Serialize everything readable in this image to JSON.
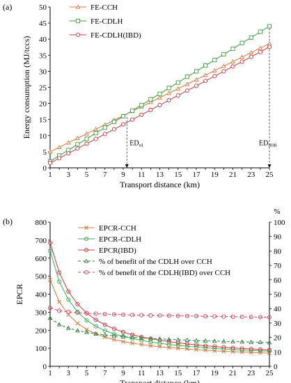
{
  "chart_data": [
    {
      "panel_label": "(a)",
      "type": "line",
      "xlabel": "Transport distance (km)",
      "ylabel": "Energy consumption (MJ/tccs)",
      "xlim": [
        1,
        25
      ],
      "ylim": [
        0,
        50
      ],
      "x_ticks": [
        1,
        3,
        5,
        7,
        9,
        11,
        13,
        15,
        17,
        19,
        21,
        23,
        25
      ],
      "y_ticks": [
        0,
        5,
        10,
        15,
        20,
        25,
        30,
        35,
        40,
        45,
        50
      ],
      "grid": false,
      "legend_position": "top-left",
      "x": [
        1,
        2,
        3,
        4,
        5,
        6,
        7,
        8,
        9,
        10,
        11,
        12,
        13,
        14,
        15,
        16,
        17,
        18,
        19,
        20,
        21,
        22,
        23,
        24,
        25
      ],
      "series": [
        {
          "name": "FE-CCH",
          "marker": "triangle",
          "color": "#d4783a",
          "values": [
            5.0,
            6.4,
            7.8,
            9.2,
            10.6,
            12.0,
            13.4,
            14.8,
            16.2,
            17.6,
            19.0,
            20.4,
            21.8,
            23.2,
            24.6,
            26.0,
            27.4,
            28.8,
            30.2,
            31.6,
            33.0,
            34.4,
            35.8,
            37.2,
            38.6
          ]
        },
        {
          "name": "FE-CDLH",
          "marker": "square",
          "color": "#3f9a3f",
          "values": [
            2.0,
            3.8,
            5.5,
            7.3,
            9.0,
            10.8,
            12.5,
            14.3,
            16.0,
            17.8,
            19.5,
            21.3,
            23.0,
            24.8,
            26.5,
            28.3,
            30.0,
            31.8,
            33.5,
            35.3,
            37.0,
            38.8,
            40.5,
            42.3,
            44.0
          ]
        },
        {
          "name": "FE-CDLH(IBD)",
          "marker": "circle",
          "color": "#c8393e",
          "values": [
            1.5,
            3.0,
            4.5,
            6.0,
            7.5,
            9.0,
            10.5,
            12.0,
            13.5,
            15.0,
            16.5,
            18.0,
            19.5,
            21.0,
            22.5,
            24.0,
            25.5,
            27.0,
            28.5,
            30.0,
            31.5,
            33.0,
            34.5,
            36.0,
            37.6
          ]
        }
      ],
      "annotations": [
        {
          "text": "ED",
          "sub": "eil",
          "x": 9.4
        },
        {
          "text": "ED",
          "sub": "IIDB",
          "x": 25
        }
      ]
    },
    {
      "panel_label": "(b)",
      "type": "line",
      "xlabel": "Transport distance (km)",
      "ylabel": "EPCR",
      "ylabel_right": "%",
      "xlim": [
        1,
        25
      ],
      "ylim": [
        0,
        800
      ],
      "ylim_right": [
        0,
        100
      ],
      "x_ticks": [
        1,
        3,
        5,
        7,
        9,
        11,
        13,
        15,
        17,
        19,
        21,
        23,
        25
      ],
      "y_ticks": [
        0,
        100,
        200,
        300,
        400,
        500,
        600,
        700,
        800
      ],
      "y_ticks_right": [
        0,
        10,
        20,
        30,
        40,
        50,
        60,
        70,
        80,
        90,
        100
      ],
      "grid": false,
      "legend_position": "top-right",
      "x": [
        1,
        2,
        3,
        4,
        5,
        6,
        7,
        8,
        9,
        10,
        11,
        12,
        13,
        14,
        15,
        16,
        17,
        18,
        19,
        20,
        21,
        22,
        23,
        24,
        25
      ],
      "series": [
        {
          "name": "EPCR-CCH",
          "axis": "left",
          "marker": "x",
          "color": "#d4783a",
          "dash": false,
          "values": [
            480,
            357,
            287,
            238,
            204,
            180,
            162,
            148,
            137,
            128,
            121,
            114,
            109,
            104,
            100,
            96,
            92,
            89,
            86,
            83,
            81,
            79,
            77,
            75,
            73
          ]
        },
        {
          "name": "EPCR-CDLH",
          "axis": "left",
          "marker": "circle-open",
          "color": "#3fae57",
          "dash": false,
          "values": [
            640,
            470,
            370,
            302,
            255,
            222,
            198,
            180,
            166,
            154,
            144,
            135,
            128,
            121,
            116,
            111,
            107,
            103,
            99,
            96,
            93,
            90,
            88,
            86,
            84
          ]
        },
        {
          "name": "EPCR(IBD)",
          "axis": "left",
          "marker": "circle-open",
          "color": "#c8393e",
          "dash": false,
          "values": [
            685,
            520,
            415,
            345,
            295,
            258,
            230,
            208,
            190,
            175,
            163,
            153,
            145,
            137,
            130,
            124,
            119,
            114,
            110,
            106,
            102,
            99,
            96,
            93,
            90
          ]
        },
        {
          "name": "% of  benefit of the CDLH over CCH",
          "axis": "right",
          "marker": "triangle-open",
          "color": "#2e7d3a",
          "dash": true,
          "values": [
            33.5,
            29.0,
            26.5,
            24.8,
            23.6,
            22.6,
            21.8,
            21.2,
            20.6,
            20.1,
            19.7,
            19.3,
            19.0,
            18.7,
            18.4,
            18.2,
            17.9,
            17.7,
            17.5,
            17.3,
            17.1,
            17.0,
            16.8,
            16.7,
            16.5
          ]
        },
        {
          "name": "% of  benefit of the CDLH(IBD) over CCH",
          "axis": "right",
          "marker": "circle-open",
          "color": "#d2455a",
          "dash": true,
          "values": [
            40.5,
            38.5,
            37.7,
            37.2,
            36.8,
            36.5,
            36.2,
            36.0,
            35.8,
            35.6,
            35.5,
            35.3,
            35.2,
            35.1,
            35.0,
            34.9,
            34.8,
            34.7,
            34.6,
            34.5,
            34.4,
            34.3,
            34.2,
            34.1,
            34.0
          ]
        }
      ]
    }
  ]
}
